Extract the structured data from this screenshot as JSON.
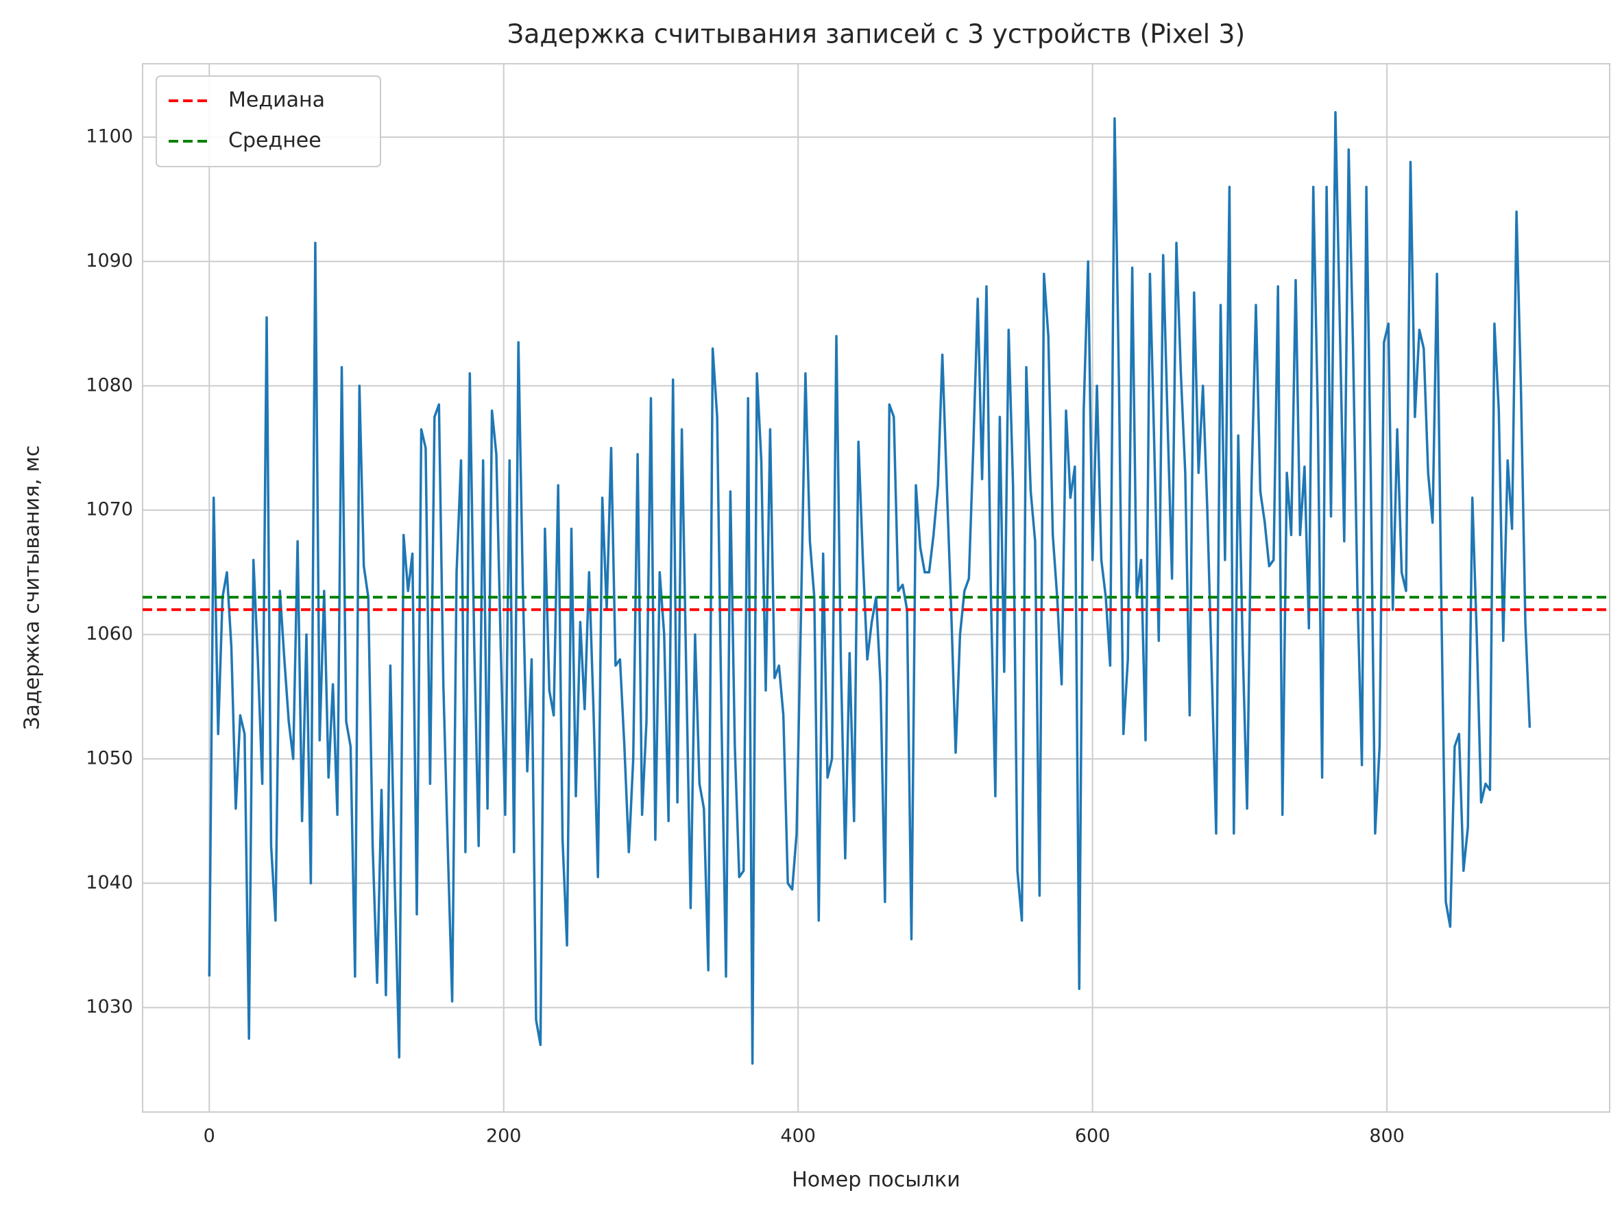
{
  "chart_data": {
    "type": "line",
    "title": "Задержка считывания записей с 3 устройств (Pixel 3)",
    "xlabel": "Номер посылки",
    "ylabel": "Задержка считывания, мс",
    "color": "#1f77b4",
    "x": [
      0,
      3,
      6,
      9,
      12,
      15,
      18,
      21,
      24,
      27,
      30,
      33,
      36,
      39,
      42,
      45,
      48,
      51,
      54,
      57,
      60,
      63,
      66,
      69,
      72,
      75,
      78,
      81,
      84,
      87,
      90,
      93,
      96,
      99,
      102,
      105,
      108,
      111,
      114,
      117,
      120,
      123,
      126,
      129,
      132,
      135,
      138,
      141,
      144,
      147,
      150,
      153,
      156,
      159,
      162,
      165,
      168,
      171,
      174,
      177,
      180,
      183,
      186,
      189,
      192,
      195,
      198,
      201,
      204,
      207,
      210,
      213,
      216,
      219,
      222,
      225,
      228,
      231,
      234,
      237,
      240,
      243,
      246,
      249,
      252,
      255,
      258,
      261,
      264,
      267,
      270,
      273,
      276,
      279,
      282,
      285,
      288,
      291,
      294,
      297,
      300,
      303,
      306,
      309,
      312,
      315,
      318,
      321,
      324,
      327,
      330,
      333,
      336,
      339,
      342,
      345,
      348,
      351,
      354,
      357,
      360,
      363,
      366,
      369,
      372,
      375,
      378,
      381,
      384,
      387,
      390,
      393,
      396,
      399,
      402,
      405,
      408,
      411,
      414,
      417,
      420,
      423,
      426,
      429,
      432,
      435,
      438,
      441,
      444,
      447,
      450,
      453,
      456,
      459,
      462,
      465,
      468,
      471,
      474,
      477,
      480,
      483,
      486,
      489,
      492,
      495,
      498,
      501,
      504,
      507,
      510,
      513,
      516,
      519,
      522,
      525,
      528,
      531,
      534,
      537,
      540,
      543,
      546,
      549,
      552,
      555,
      558,
      561,
      564,
      567,
      570,
      573,
      576,
      579,
      582,
      585,
      588,
      591,
      594,
      597,
      600,
      603,
      606,
      609,
      612,
      615,
      618,
      621,
      624,
      627,
      630,
      633,
      636,
      639,
      642,
      645,
      648,
      651,
      654,
      657,
      660,
      663,
      666,
      669,
      672,
      675,
      678,
      681,
      684,
      687,
      690,
      693,
      696,
      699,
      702,
      705,
      708,
      711,
      714,
      717,
      720,
      723,
      726,
      729,
      732,
      735,
      738,
      741,
      744,
      747,
      750,
      753,
      756,
      759,
      762,
      765,
      768,
      771,
      774,
      777,
      780,
      783,
      786,
      789,
      792,
      795,
      798,
      801,
      804,
      807,
      810,
      813,
      816,
      819,
      822,
      825,
      828,
      831,
      834,
      837,
      840,
      843,
      846,
      849,
      852,
      855,
      858,
      861,
      864,
      867,
      870,
      873,
      876,
      879,
      882,
      885,
      888,
      891,
      894,
      897
    ],
    "values": [
      1032.5,
      1071,
      1052,
      1063,
      1065,
      1059,
      1046,
      1053.5,
      1052,
      1027.5,
      1066,
      1058,
      1048,
      1085.5,
      1043,
      1037,
      1063.5,
      1058,
      1053,
      1050,
      1067.5,
      1045,
      1060,
      1040,
      1091.5,
      1051.5,
      1063.5,
      1048.5,
      1056,
      1045.5,
      1081.5,
      1053,
      1051,
      1032.5,
      1080,
      1065.5,
      1063,
      1043,
      1032,
      1047.5,
      1031,
      1057.5,
      1040,
      1026,
      1068,
      1063.5,
      1066.5,
      1037.5,
      1076.5,
      1075,
      1048,
      1077.5,
      1078.5,
      1056,
      1043,
      1030.5,
      1065,
      1074,
      1042.5,
      1081,
      1059,
      1043,
      1074,
      1046,
      1078,
      1074.5,
      1059,
      1045.5,
      1074,
      1042.5,
      1083.5,
      1064,
      1049,
      1058,
      1029,
      1027,
      1068.5,
      1055.5,
      1053.5,
      1072,
      1043.5,
      1035,
      1068.5,
      1047,
      1061,
      1054,
      1065,
      1054,
      1040.5,
      1071,
      1062,
      1075,
      1057.5,
      1058,
      1051,
      1042.5,
      1050,
      1074.5,
      1045.5,
      1053,
      1079,
      1043.5,
      1065,
      1060,
      1045,
      1080.5,
      1046.5,
      1076.5,
      1057,
      1038,
      1060,
      1048,
      1046,
      1033,
      1083,
      1077.5,
      1053,
      1032.5,
      1071.5,
      1051,
      1040.5,
      1041,
      1079,
      1025.5,
      1081,
      1074,
      1055.5,
      1076.5,
      1056.5,
      1057.5,
      1053.5,
      1040,
      1039.5,
      1044,
      1062,
      1081,
      1067.5,
      1063,
      1037,
      1066.5,
      1048.5,
      1050,
      1084,
      1058,
      1042,
      1058.5,
      1045,
      1075.5,
      1066,
      1058,
      1061,
      1063,
      1056,
      1038.5,
      1078.5,
      1077.5,
      1063.5,
      1064,
      1062,
      1035.5,
      1072,
      1067,
      1065,
      1065,
      1068,
      1072,
      1082.5,
      1072,
      1062,
      1050.5,
      1060,
      1063.5,
      1064.5,
      1075,
      1087,
      1072.5,
      1088,
      1063,
      1047,
      1077.5,
      1057,
      1084.5,
      1072,
      1041,
      1037,
      1081.5,
      1071.5,
      1067.5,
      1039,
      1089,
      1084,
      1068,
      1063,
      1056,
      1078,
      1071,
      1073.5,
      1031.5,
      1078,
      1090,
      1066,
      1080,
      1066,
      1063,
      1057.5,
      1101.5,
      1080,
      1052,
      1058,
      1089.5,
      1063,
      1066,
      1051.5,
      1089,
      1075,
      1059.5,
      1090.5,
      1077,
      1064.5,
      1091.5,
      1081,
      1073,
      1053.5,
      1087.5,
      1073,
      1080,
      1070,
      1057,
      1044,
      1086.5,
      1066,
      1096,
      1044,
      1076,
      1059,
      1046,
      1072,
      1086.5,
      1071.5,
      1069,
      1065.5,
      1066,
      1088,
      1045.5,
      1073,
      1068,
      1088.5,
      1068,
      1073.5,
      1060.5,
      1096,
      1078,
      1048.5,
      1096,
      1069.5,
      1102,
      1085,
      1067.5,
      1099,
      1083,
      1063,
      1049.5,
      1096,
      1073,
      1044,
      1051,
      1083.5,
      1085,
      1062,
      1076.5,
      1065,
      1063.5,
      1098,
      1077.5,
      1084.5,
      1083,
      1073,
      1069,
      1089,
      1062,
      1038.5,
      1036.5,
      1051,
      1052,
      1041,
      1044.5,
      1071,
      1060,
      1046.5,
      1048,
      1047.5,
      1085,
      1078,
      1059.5,
      1074,
      1068.5,
      1094,
      1080,
      1061,
      1052.5
    ],
    "hlines": [
      {
        "name": "Медиана",
        "value": 1062,
        "color": "red"
      },
      {
        "name": "Среднее",
        "value": 1063,
        "color": "green"
      }
    ],
    "xlim": [
      -45.3,
      951.3
    ],
    "ylim": [
      1021.6,
      1105.9
    ],
    "xticks": [
      0,
      200,
      400,
      600,
      800
    ],
    "yticks": [
      1030,
      1040,
      1050,
      1060,
      1070,
      1080,
      1090,
      1100
    ],
    "grid": true,
    "legend": "upper left"
  }
}
